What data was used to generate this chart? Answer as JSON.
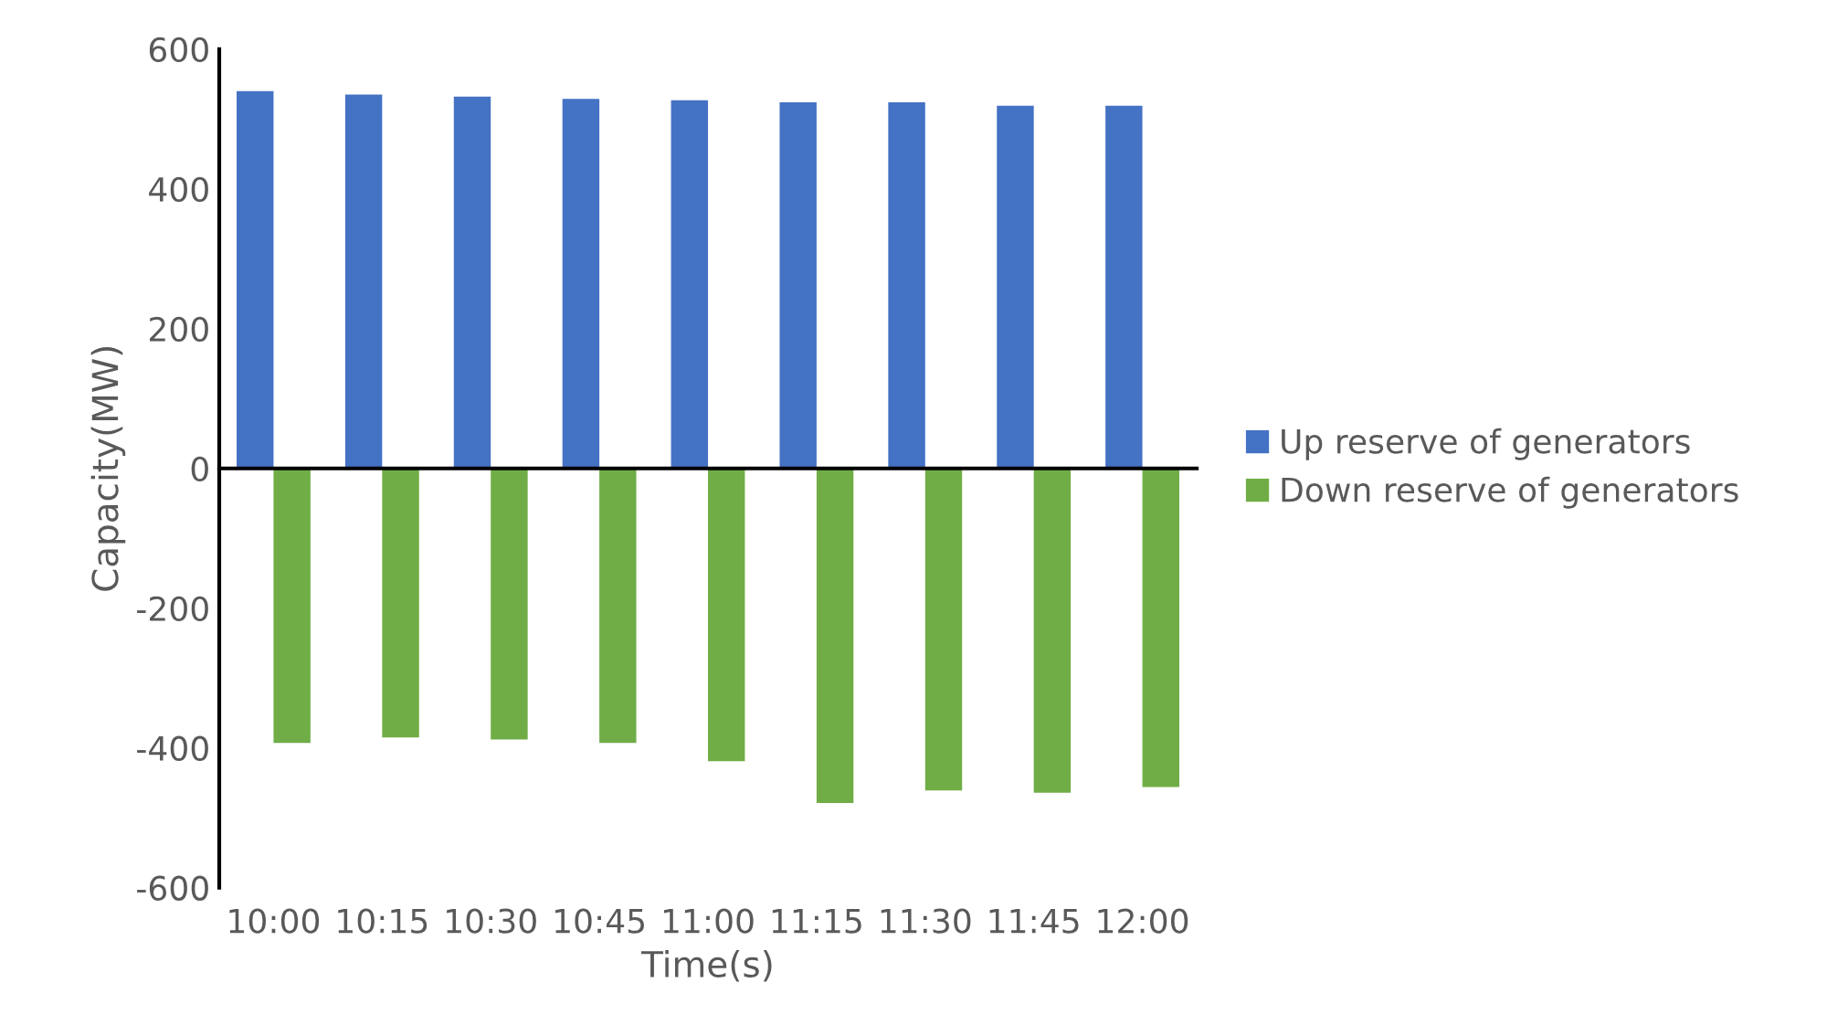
{
  "chart_data": {
    "type": "bar",
    "xlabel": "Time(s)",
    "ylabel": "Capacity(MW)",
    "categories": [
      "10:00",
      "10:15",
      "10:30",
      "10:45",
      "11:00",
      "11:15",
      "11:30",
      "11:45",
      "12:00"
    ],
    "series": [
      {
        "name": "Up reserve of generators",
        "color": "#4472c4",
        "values": [
          540,
          535,
          532,
          529,
          527,
          524,
          524,
          519,
          519
        ]
      },
      {
        "name": "Down reserve of generators",
        "color": "#70ad47",
        "values": [
          -393,
          -385,
          -388,
          -393,
          -419,
          -479,
          -461,
          -464,
          -456
        ]
      }
    ],
    "ylim": [
      -600,
      600
    ],
    "yticks": [
      -600,
      -400,
      -200,
      0,
      200,
      400,
      600
    ],
    "legend": "right"
  }
}
